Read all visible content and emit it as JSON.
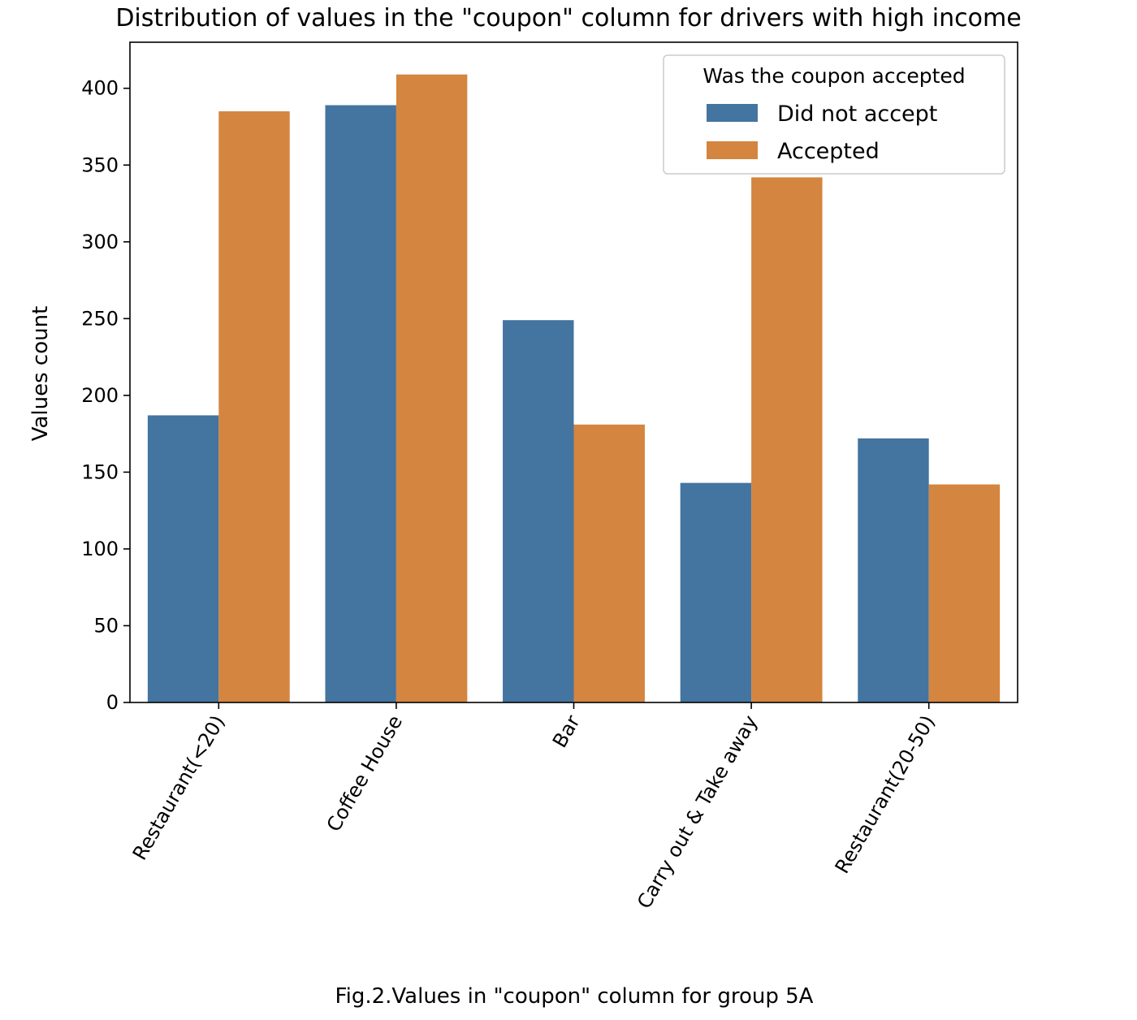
{
  "chart_data": {
    "type": "bar",
    "title": "Distribution of values in the \"coupon\" column for drivers with high income",
    "xlabel": "",
    "ylabel": "Values count",
    "caption": "Fig.2.Values in \"coupon\" column for group 5A",
    "categories": [
      "Restaurant(<20)",
      "Coffee House",
      "Bar",
      "Carry out & Take away",
      "Restaurant(20-50)"
    ],
    "series": [
      {
        "name": "Did not accept",
        "color": "#4474a0",
        "values": [
          187,
          389,
          249,
          143,
          172
        ]
      },
      {
        "name": "Accepted",
        "color": "#d4853f",
        "values": [
          385,
          409,
          181,
          342,
          142
        ]
      }
    ],
    "ylim": [
      0,
      430
    ],
    "yticks": [
      0,
      50,
      100,
      150,
      200,
      250,
      300,
      350,
      400
    ],
    "grid": false,
    "legend": {
      "title": "Was the coupon accepted",
      "placement": "top-right"
    }
  }
}
